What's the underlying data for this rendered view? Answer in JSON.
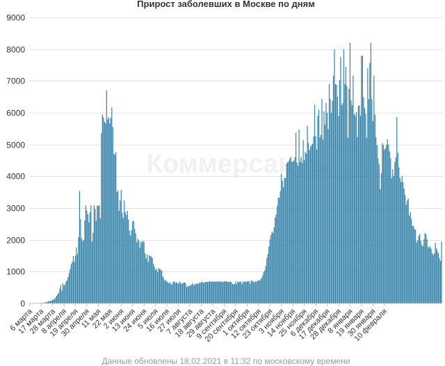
{
  "chart_data": {
    "type": "bar",
    "title": "Прирост заболевших в Москве по дням",
    "footnote": "Данные обновлены 18.02.2021 в 11:32 по московскому времени",
    "watermark": "Коммерсантъ",
    "colors": {
      "bar": "#2f7fa6",
      "bar_edge": "#1d5f80"
    },
    "ylim": [
      0,
      9000
    ],
    "yticks": [
      0,
      1000,
      2000,
      3000,
      4000,
      5000,
      6000,
      7000,
      8000,
      9000
    ],
    "grid": true,
    "legend": "none",
    "x_tick_labels": [
      "6 марта",
      "17 марта",
      "28 марта",
      "8 апреля",
      "19 апреля",
      "30 апреля",
      "11 мая",
      "22 мая",
      "2 июня",
      "13 июня",
      "24 июня",
      "5 июля",
      "16 июля",
      "27 июля",
      "7 августа",
      "18 августа",
      "29 августа",
      "9 сентября",
      "20 сентября",
      "1 октября",
      "12 октября",
      "23 октября",
      "3 ноября",
      "14 ноября",
      "25 ноября",
      "6 декабря",
      "17 декабря",
      "28 декабря",
      "8 января",
      "19 января",
      "30 января",
      "10 февраля"
    ],
    "series": [
      {
        "name": "Прирост заболевших",
        "values": [
          6,
          0,
          0,
          0,
          0,
          1,
          0,
          5,
          6,
          9,
          10,
          17,
          17,
          12,
          18,
          32,
          39,
          48,
          61,
          75,
          76,
          90,
          108,
          128,
          141,
          193,
          244,
          285,
          334,
          465,
          581,
          390,
          630,
          554,
          597,
          691,
          725,
          827,
          955,
          1088,
          1236,
          1309,
          1489,
          1306,
          1499,
          1768,
          1555,
          2082,
          3534,
          2648,
          2041,
          1954,
          1996,
          2612,
          3083,
          2923,
          2798,
          2548,
          2871,
          3093,
          1940,
          2220,
          3093,
          2970,
          2599,
          3073,
          3072,
          3083,
          2677,
          5358,
          5948,
          5858,
          5712,
          5667,
          6703,
          5795,
          5859,
          5667,
          5842,
          6169,
          5551,
          4712,
          4678,
          4764,
          3505,
          3545,
          2913,
          3238,
          3570,
          2854,
          2683,
          3238,
          2873,
          2781,
          2913,
          2638,
          2286,
          2140,
          2302,
          2582,
          2595,
          2343,
          2203,
          1916,
          2035,
          1974,
          1760,
          1953,
          1910,
          1966,
          1941,
          1572,
          1418,
          1537,
          1305,
          1513,
          1495,
          1470,
          1436,
          1245,
          1159,
          1057,
          1081,
          981,
          1119,
          1080,
          1057,
          1035,
          848,
          776,
          713,
          737,
          687,
          663,
          634,
          660,
          598,
          604,
          679,
          694,
          643,
          666,
          642,
          613,
          688,
          657,
          611,
          632,
          659,
          664,
          632,
          521,
          531,
          551,
          555,
          576,
          608,
          631,
          565,
          610,
          606,
          639,
          610,
          649,
          647,
          660,
          684,
          662,
          644,
          683,
          679,
          676,
          684,
          692,
          688,
          686,
          690,
          683,
          686,
          678,
          696,
          684,
          680,
          694,
          682,
          684,
          670,
          688,
          694,
          696,
          681,
          676,
          674,
          687,
          670,
          610,
          600,
          609,
          689,
          605,
          685,
          682,
          668,
          693,
          607,
          688,
          666,
          692,
          679,
          690,
          706,
          695,
          618,
          721,
          710,
          687,
          659,
          698,
          685,
          711,
          727,
          718,
          758,
          798,
          883,
          984,
          1039,
          1176,
          1428,
          1560,
          1792,
          2016,
          2155,
          2263,
          2216,
          2396,
          2706,
          2798,
          3075,
          3327,
          3327,
          3537,
          4082,
          3856,
          3662,
          3948,
          3942,
          4395,
          4444,
          4475,
          4540,
          4610,
          4454,
          4458,
          4491,
          4596,
          5368,
          4435,
          4336,
          5473,
          4455,
          4610,
          4414,
          5142,
          4501,
          4765,
          4715,
          5585,
          5051,
          4821,
          4932,
          4987,
          5026,
          5246,
          6253,
          5257,
          4842,
          5914,
          6098,
          5226,
          5302,
          6438,
          5154,
          6046,
          5624,
          6310,
          5997,
          5482,
          6897,
          6438,
          5997,
          6371,
          7168,
          7993,
          6897,
          6876,
          6509,
          5891,
          7027,
          7750,
          6236,
          6302,
          7993,
          6902,
          7440,
          6838,
          5207,
          6751,
          8203,
          6390,
          6235,
          7169,
          5957,
          5902,
          6020,
          5234,
          6223,
          6234,
          5905,
          7797,
          7795,
          6485,
          6153,
          5964,
          5218,
          7397,
          6425,
          7567,
          8203,
          6431,
          5737,
          7173,
          5936,
          5231,
          4984,
          4564,
          4373,
          3599,
          4100,
          5051,
          4983,
          4832,
          4880,
          4999,
          5168,
          4999,
          4783,
          4565,
          3937,
          4218,
          4011,
          4450,
          4589,
          5867,
          4739,
          4283,
          3953,
          3826,
          4016,
          3810,
          3609,
          3408,
          3102,
          3237,
          3302,
          2766,
          2869,
          2662,
          2433,
          2444,
          2341,
          2312,
          1917,
          1982,
          2125,
          2191,
          1977,
          1851,
          1797,
          2016,
          2215,
          2175,
          2020,
          1773,
          1753,
          1801,
          1719,
          1576,
          1523,
          1569,
          1906,
          1735,
          1648,
          1576,
          1423,
          1334,
          1939
        ]
      }
    ]
  }
}
